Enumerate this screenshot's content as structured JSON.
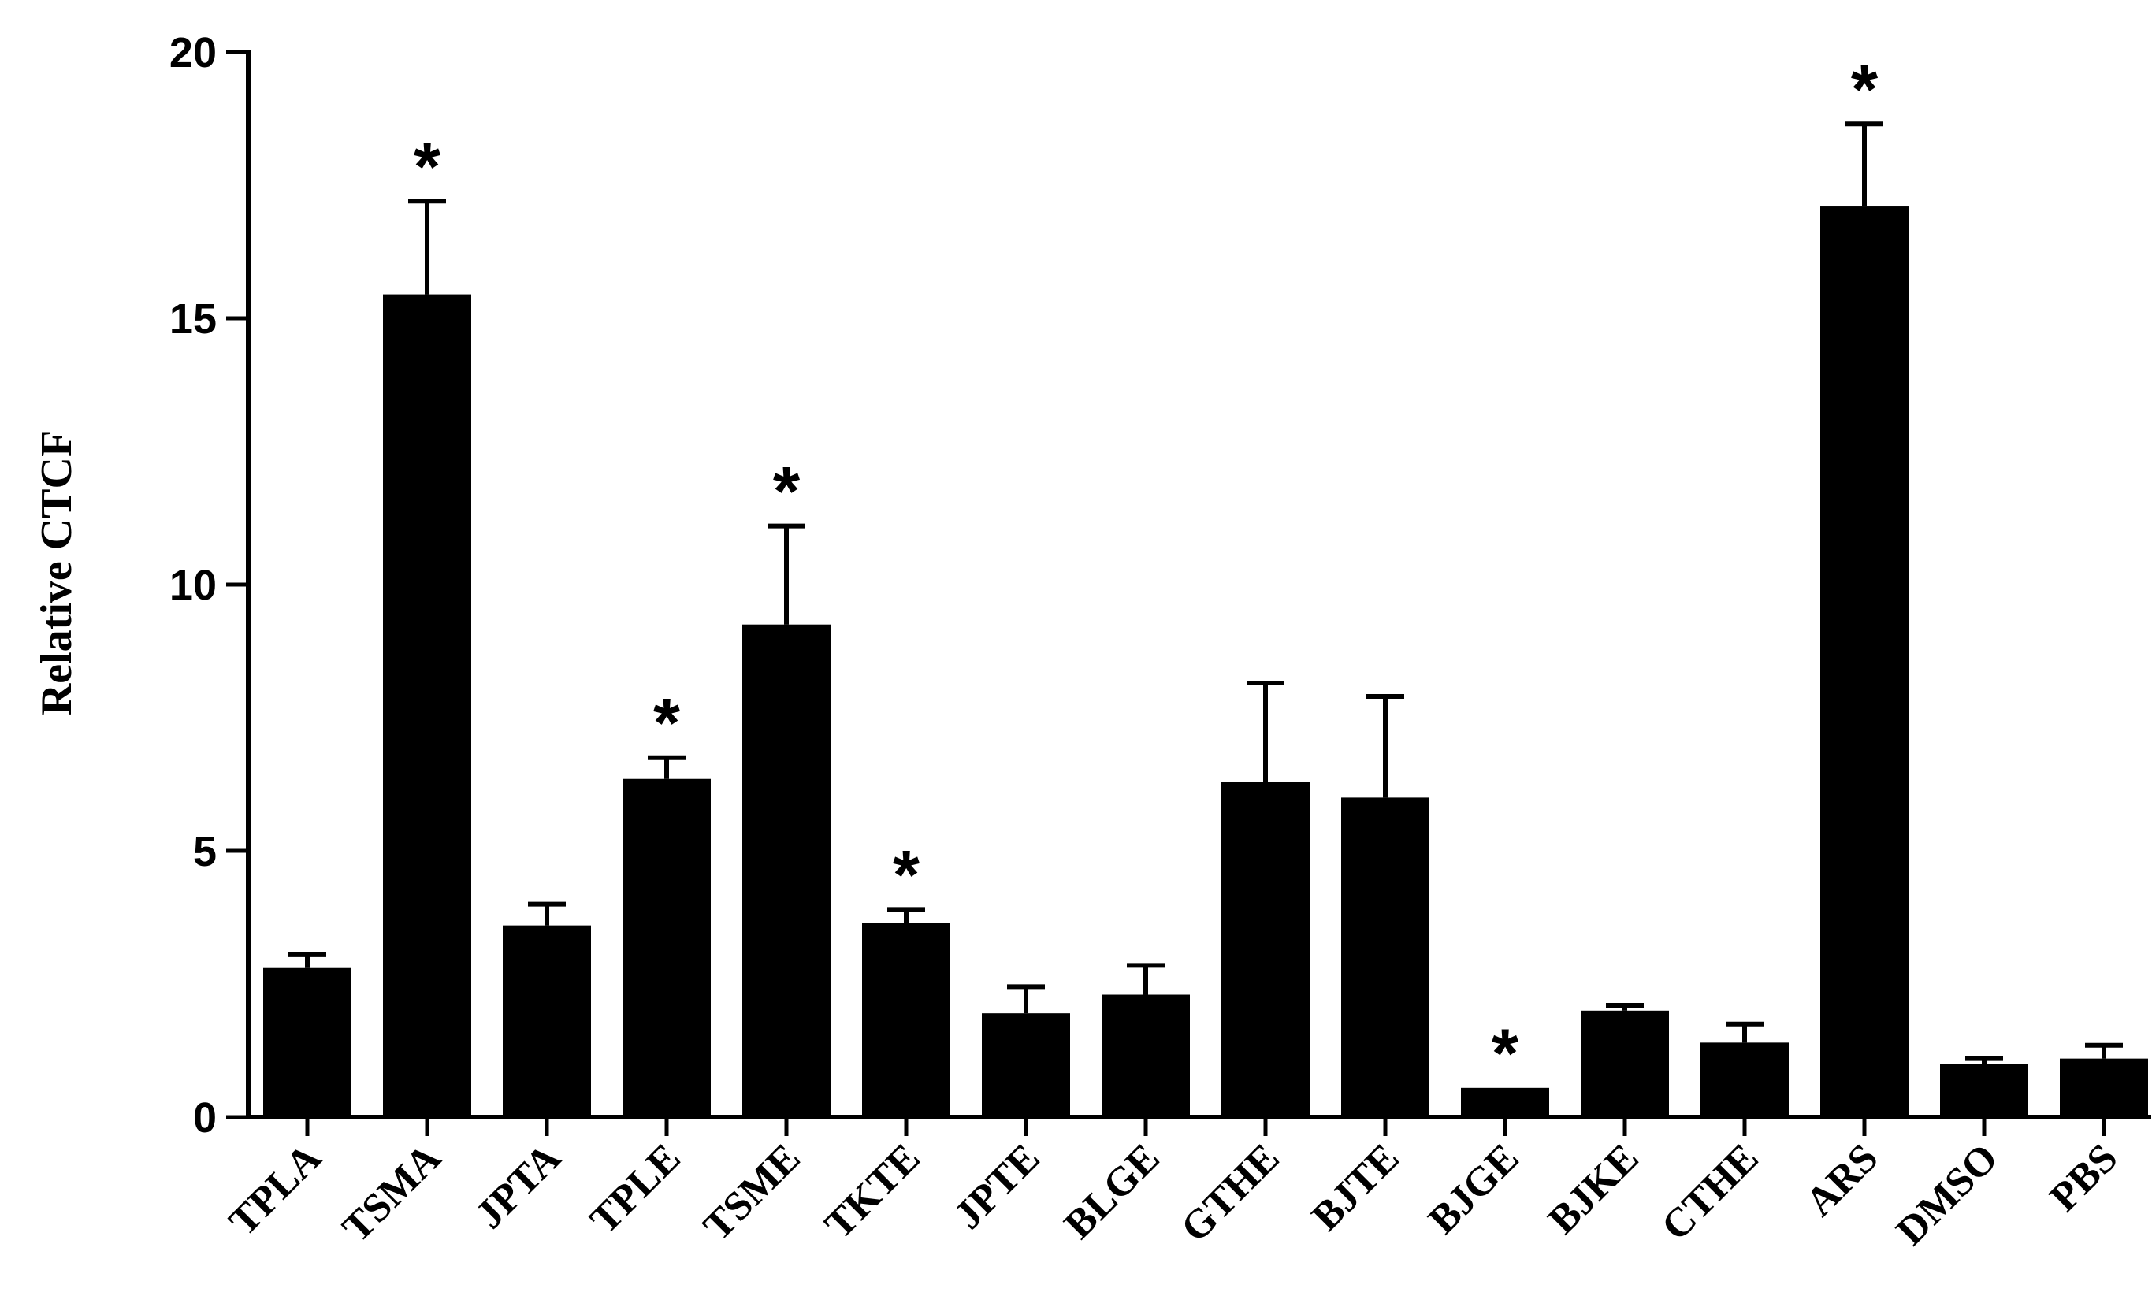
{
  "chart_data": {
    "type": "bar",
    "title": "",
    "xlabel": "",
    "ylabel": "Relative CTCF",
    "ylim": [
      0,
      20
    ],
    "yticks": [
      0,
      5,
      10,
      15,
      20
    ],
    "grid": false,
    "bar_color": "#000000",
    "categories": [
      "TPLA",
      "TSMA",
      "JPTA",
      "TPLE",
      "TSME",
      "TKTE",
      "JPTE",
      "BLGE",
      "GTHE",
      "BJTE",
      "BJGE",
      "BJKE",
      "CTHE",
      "ARS",
      "DMSO",
      "PBS"
    ],
    "values": [
      2.8,
      15.45,
      3.6,
      6.35,
      9.25,
      3.65,
      1.95,
      2.3,
      6.3,
      6.0,
      0.55,
      2.0,
      1.4,
      17.1,
      1.0,
      1.1
    ],
    "error_upper": [
      3.05,
      17.2,
      4.0,
      6.75,
      11.1,
      3.9,
      2.45,
      2.85,
      8.15,
      7.9,
      0.55,
      2.1,
      1.75,
      18.65,
      1.1,
      1.35
    ],
    "significance": [
      "",
      "*",
      "",
      "*",
      "*",
      "*",
      "",
      "",
      "",
      "",
      "*",
      "",
      "",
      "*",
      "",
      ""
    ]
  }
}
